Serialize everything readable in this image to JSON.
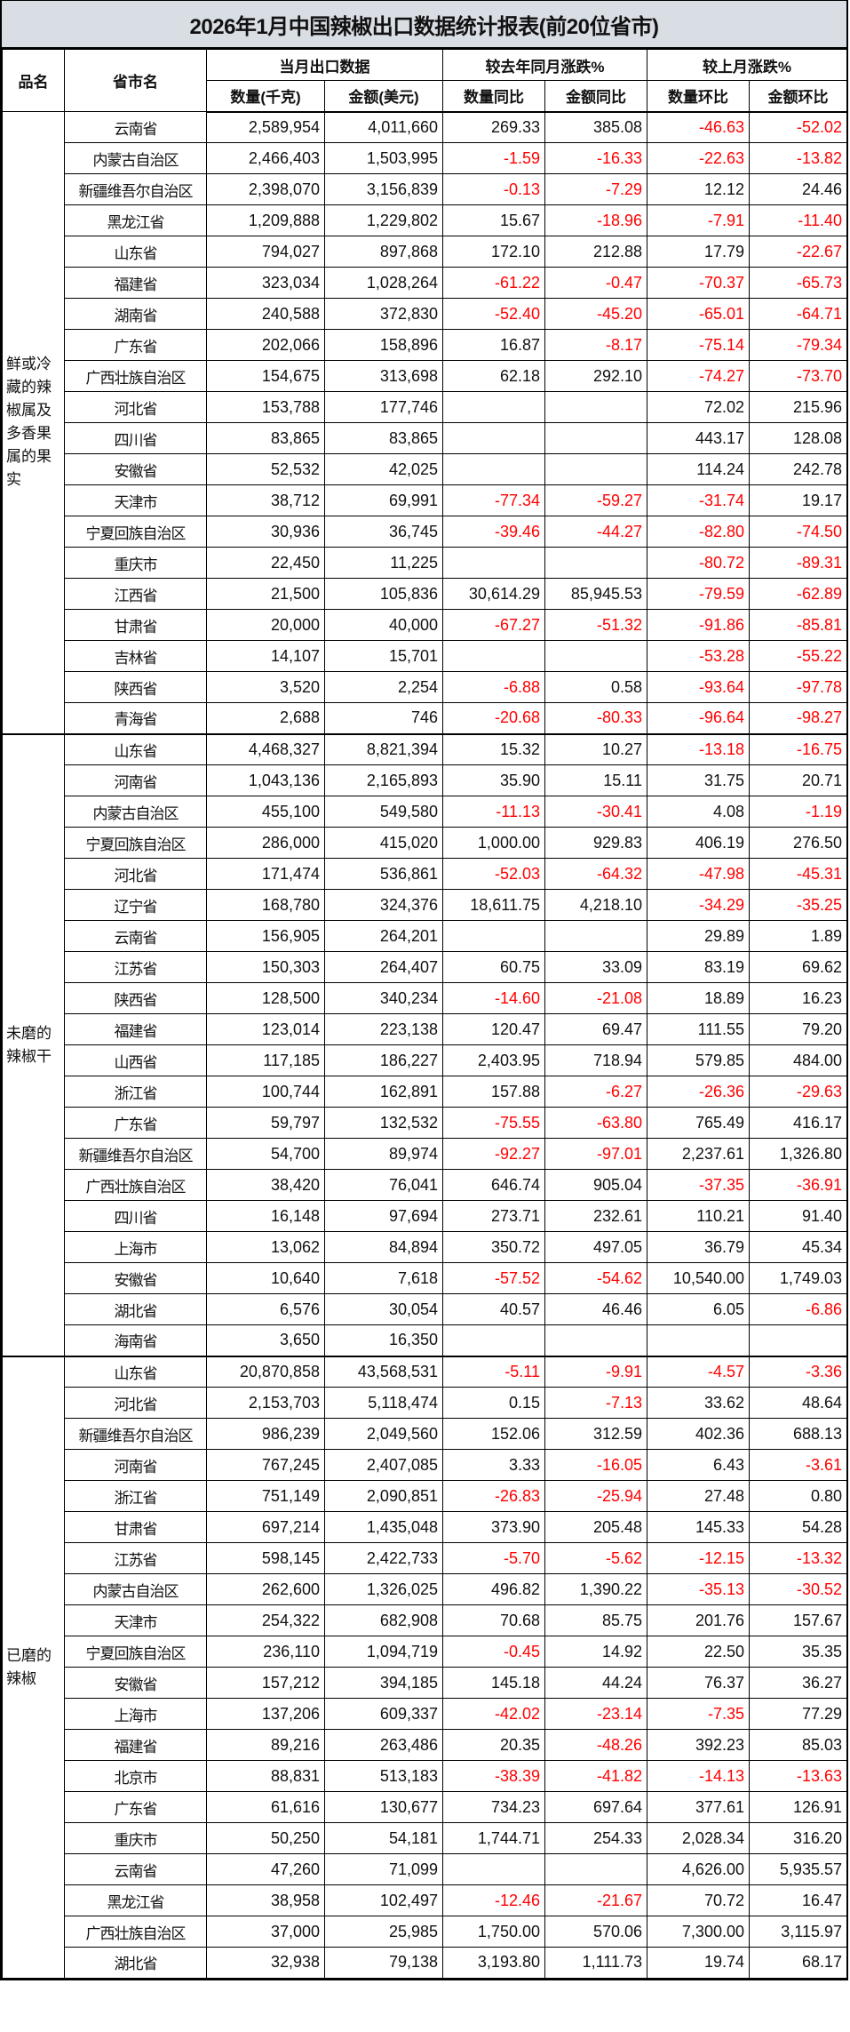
{
  "title": "2026年1月中国辣椒出口数据统计报表(前20位省市)",
  "header": {
    "category": "品名",
    "province": "省市名",
    "group_current": "当月出口数据",
    "group_yoy": "较去年同月涨跌%",
    "group_mom": "较上月涨跌%",
    "qty": "数量(千克)",
    "amount": "金额(美元)",
    "qty_yoy": "数量同比",
    "amount_yoy": "金额同比",
    "qty_mom": "数量环比",
    "amount_mom": "金额环比"
  },
  "colors": {
    "negative": "#ff0000",
    "title_bg": "#d9dde4"
  },
  "sections": [
    {
      "category": "鲜或冷藏的辣椒属及多香果属的果实",
      "rows": [
        [
          "云南省",
          "2,589,954",
          "4,011,660",
          "269.33",
          "385.08",
          "-46.63",
          "-52.02"
        ],
        [
          "内蒙古自治区",
          "2,466,403",
          "1,503,995",
          "-1.59",
          "-16.33",
          "-22.63",
          "-13.82"
        ],
        [
          "新疆维吾尔自治区",
          "2,398,070",
          "3,156,839",
          "-0.13",
          "-7.29",
          "12.12",
          "24.46"
        ],
        [
          "黑龙江省",
          "1,209,888",
          "1,229,802",
          "15.67",
          "-18.96",
          "-7.91",
          "-11.40"
        ],
        [
          "山东省",
          "794,027",
          "897,868",
          "172.10",
          "212.88",
          "17.79",
          "-22.67"
        ],
        [
          "福建省",
          "323,034",
          "1,028,264",
          "-61.22",
          "-0.47",
          "-70.37",
          "-65.73"
        ],
        [
          "湖南省",
          "240,588",
          "372,830",
          "-52.40",
          "-45.20",
          "-65.01",
          "-64.71"
        ],
        [
          "广东省",
          "202,066",
          "158,896",
          "16.87",
          "-8.17",
          "-75.14",
          "-79.34"
        ],
        [
          "广西壮族自治区",
          "154,675",
          "313,698",
          "62.18",
          "292.10",
          "-74.27",
          "-73.70"
        ],
        [
          "河北省",
          "153,788",
          "177,746",
          "",
          "",
          "72.02",
          "215.96"
        ],
        [
          "四川省",
          "83,865",
          "83,865",
          "",
          "",
          "443.17",
          "128.08"
        ],
        [
          "安徽省",
          "52,532",
          "42,025",
          "",
          "",
          "114.24",
          "242.78"
        ],
        [
          "天津市",
          "38,712",
          "69,991",
          "-77.34",
          "-59.27",
          "-31.74",
          "19.17"
        ],
        [
          "宁夏回族自治区",
          "30,936",
          "36,745",
          "-39.46",
          "-44.27",
          "-82.80",
          "-74.50"
        ],
        [
          "重庆市",
          "22,450",
          "11,225",
          "",
          "",
          "-80.72",
          "-89.31"
        ],
        [
          "江西省",
          "21,500",
          "105,836",
          "30,614.29",
          "85,945.53",
          "-79.59",
          "-62.89"
        ],
        [
          "甘肃省",
          "20,000",
          "40,000",
          "-67.27",
          "-51.32",
          "-91.86",
          "-85.81"
        ],
        [
          "吉林省",
          "14,107",
          "15,701",
          "",
          "",
          "-53.28",
          "-55.22"
        ],
        [
          "陕西省",
          "3,520",
          "2,254",
          "-6.88",
          "0.58",
          "-93.64",
          "-97.78"
        ],
        [
          "青海省",
          "2,688",
          "746",
          "-20.68",
          "-80.33",
          "-96.64",
          "-98.27"
        ]
      ]
    },
    {
      "category": "未磨的辣椒干",
      "rows": [
        [
          "山东省",
          "4,468,327",
          "8,821,394",
          "15.32",
          "10.27",
          "-13.18",
          "-16.75"
        ],
        [
          "河南省",
          "1,043,136",
          "2,165,893",
          "35.90",
          "15.11",
          "31.75",
          "20.71"
        ],
        [
          "内蒙古自治区",
          "455,100",
          "549,580",
          "-11.13",
          "-30.41",
          "4.08",
          "-1.19"
        ],
        [
          "宁夏回族自治区",
          "286,000",
          "415,020",
          "1,000.00",
          "929.83",
          "406.19",
          "276.50"
        ],
        [
          "河北省",
          "171,474",
          "536,861",
          "-52.03",
          "-64.32",
          "-47.98",
          "-45.31"
        ],
        [
          "辽宁省",
          "168,780",
          "324,376",
          "18,611.75",
          "4,218.10",
          "-34.29",
          "-35.25"
        ],
        [
          "云南省",
          "156,905",
          "264,201",
          "",
          "",
          "29.89",
          "1.89"
        ],
        [
          "江苏省",
          "150,303",
          "264,407",
          "60.75",
          "33.09",
          "83.19",
          "69.62"
        ],
        [
          "陕西省",
          "128,500",
          "340,234",
          "-14.60",
          "-21.08",
          "18.89",
          "16.23"
        ],
        [
          "福建省",
          "123,014",
          "223,138",
          "120.47",
          "69.47",
          "111.55",
          "79.20"
        ],
        [
          "山西省",
          "117,185",
          "186,227",
          "2,403.95",
          "718.94",
          "579.85",
          "484.00"
        ],
        [
          "浙江省",
          "100,744",
          "162,891",
          "157.88",
          "-6.27",
          "-26.36",
          "-29.63"
        ],
        [
          "广东省",
          "59,797",
          "132,532",
          "-75.55",
          "-63.80",
          "765.49",
          "416.17"
        ],
        [
          "新疆维吾尔自治区",
          "54,700",
          "89,974",
          "-92.27",
          "-97.01",
          "2,237.61",
          "1,326.80"
        ],
        [
          "广西壮族自治区",
          "38,420",
          "76,041",
          "646.74",
          "905.04",
          "-37.35",
          "-36.91"
        ],
        [
          "四川省",
          "16,148",
          "97,694",
          "273.71",
          "232.61",
          "110.21",
          "91.40"
        ],
        [
          "上海市",
          "13,062",
          "84,894",
          "350.72",
          "497.05",
          "36.79",
          "45.34"
        ],
        [
          "安徽省",
          "10,640",
          "7,618",
          "-57.52",
          "-54.62",
          "10,540.00",
          "1,749.03"
        ],
        [
          "湖北省",
          "6,576",
          "30,054",
          "40.57",
          "46.46",
          "6.05",
          "-6.86"
        ],
        [
          "海南省",
          "3,650",
          "16,350",
          "",
          "",
          "",
          ""
        ]
      ]
    },
    {
      "category": "已磨的辣椒",
      "rows": [
        [
          "山东省",
          "20,870,858",
          "43,568,531",
          "-5.11",
          "-9.91",
          "-4.57",
          "-3.36"
        ],
        [
          "河北省",
          "2,153,703",
          "5,118,474",
          "0.15",
          "-7.13",
          "33.62",
          "48.64"
        ],
        [
          "新疆维吾尔自治区",
          "986,239",
          "2,049,560",
          "152.06",
          "312.59",
          "402.36",
          "688.13"
        ],
        [
          "河南省",
          "767,245",
          "2,407,085",
          "3.33",
          "-16.05",
          "6.43",
          "-3.61"
        ],
        [
          "浙江省",
          "751,149",
          "2,090,851",
          "-26.83",
          "-25.94",
          "27.48",
          "0.80"
        ],
        [
          "甘肃省",
          "697,214",
          "1,435,048",
          "373.90",
          "205.48",
          "145.33",
          "54.28"
        ],
        [
          "江苏省",
          "598,145",
          "2,422,733",
          "-5.70",
          "-5.62",
          "-12.15",
          "-13.32"
        ],
        [
          "内蒙古自治区",
          "262,600",
          "1,326,025",
          "496.82",
          "1,390.22",
          "-35.13",
          "-30.52"
        ],
        [
          "天津市",
          "254,322",
          "682,908",
          "70.68",
          "85.75",
          "201.76",
          "157.67"
        ],
        [
          "宁夏回族自治区",
          "236,110",
          "1,094,719",
          "-0.45",
          "14.92",
          "22.50",
          "35.35"
        ],
        [
          "安徽省",
          "157,212",
          "394,185",
          "145.18",
          "44.24",
          "76.37",
          "36.27"
        ],
        [
          "上海市",
          "137,206",
          "609,337",
          "-42.02",
          "-23.14",
          "-7.35",
          "77.29"
        ],
        [
          "福建省",
          "89,216",
          "263,486",
          "20.35",
          "-48.26",
          "392.23",
          "85.03"
        ],
        [
          "北京市",
          "88,831",
          "513,183",
          "-38.39",
          "-41.82",
          "-14.13",
          "-13.63"
        ],
        [
          "广东省",
          "61,616",
          "130,677",
          "734.23",
          "697.64",
          "377.61",
          "126.91"
        ],
        [
          "重庆市",
          "50,250",
          "54,181",
          "1,744.71",
          "254.33",
          "2,028.34",
          "316.20"
        ],
        [
          "云南省",
          "47,260",
          "71,099",
          "",
          "",
          "4,626.00",
          "5,935.57"
        ],
        [
          "黑龙江省",
          "38,958",
          "102,497",
          "-12.46",
          "-21.67",
          "70.72",
          "16.47"
        ],
        [
          "广西壮族自治区",
          "37,000",
          "25,985",
          "1,750.00",
          "570.06",
          "7,300.00",
          "3,115.97"
        ],
        [
          "湖北省",
          "32,938",
          "79,138",
          "3,193.80",
          "1,111.73",
          "19.74",
          "68.17"
        ]
      ]
    }
  ]
}
